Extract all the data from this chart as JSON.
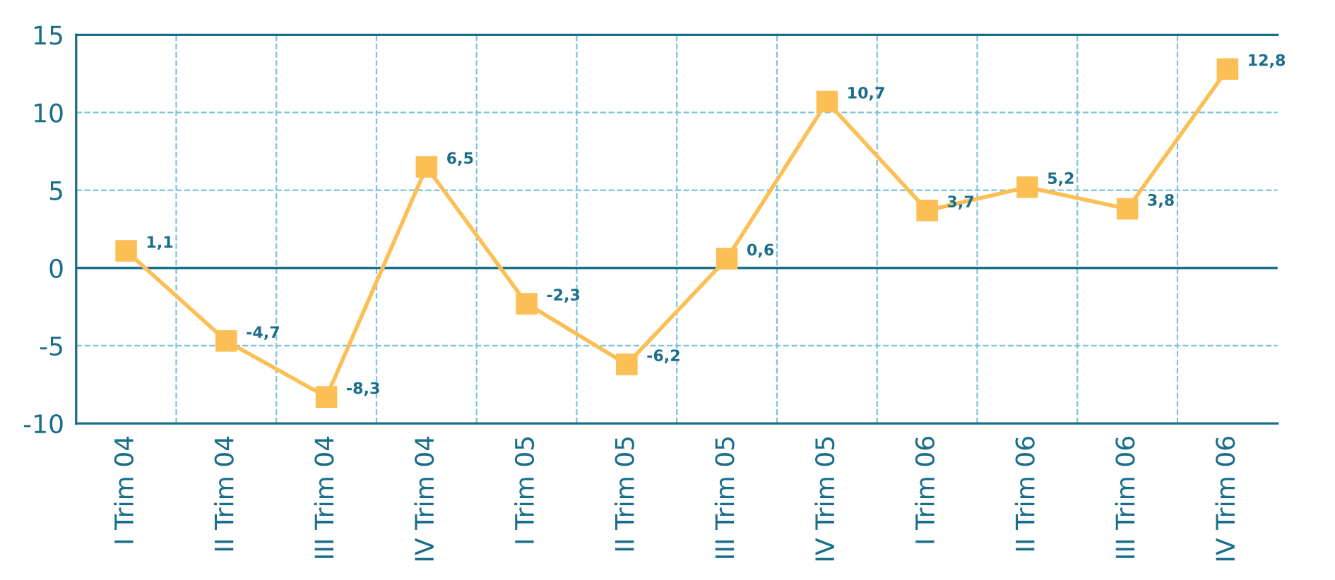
{
  "chart_data": {
    "type": "line",
    "categories": [
      "I Trim 04",
      "II Trim 04",
      "III Trim 04",
      "IV Trim 04",
      "I Trim 05",
      "II Trim 05",
      "III Trim 05",
      "IV Trim 05",
      "I Trim 06",
      "II Trim 06",
      "III Trim 06",
      "IV Trim 06"
    ],
    "series": [
      {
        "color": "#fbbf55",
        "values": [
          1.1,
          -4.7,
          -8.3,
          6.5,
          -2.3,
          -6.2,
          0.6,
          10.7,
          3.7,
          5.2,
          3.8,
          12.8
        ],
        "value_labels": [
          "1,1",
          "-4,7",
          "-8,3",
          "6,5",
          "-2,3",
          "-6,2",
          "0,6",
          "10,7",
          "3,7",
          "5,2",
          "3,8",
          "12,8"
        ]
      }
    ],
    "ylim": [
      -10,
      15
    ],
    "yticks": [
      -10,
      -5,
      0,
      5,
      10,
      15
    ],
    "ref_lines": [
      {
        "axis": "y",
        "value": 0,
        "color": "#1a6e8a",
        "line_style": "solid"
      }
    ],
    "grid": true,
    "marker": "square",
    "line_style": "solid",
    "legend": false
  }
}
